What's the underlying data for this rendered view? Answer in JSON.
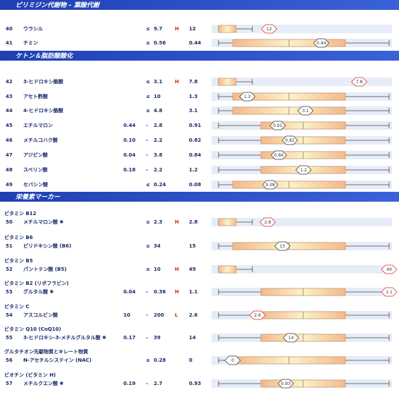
{
  "sections": [
    {
      "title": "ピリミジン代謝物 – 葉酸代謝",
      "rows": [
        {
          "no": "40",
          "name": "ウラシル",
          "op": "≤",
          "high": "9.7",
          "flag": "H",
          "value": "12"
        },
        {
          "no": "41",
          "name": "チミン",
          "op": "≤",
          "high": "0.56",
          "value": "0.44"
        }
      ]
    },
    {
      "title": "ケトン＆脂肪酸酸化",
      "rows": [
        {
          "no": "42",
          "name": "3-ヒドロキシ酪酸",
          "op": "≤",
          "high": "3.1",
          "flag": "H",
          "value": "7.8"
        },
        {
          "no": "43",
          "name": "アセト酢酸",
          "op": "≤",
          "high": "10",
          "value": "1.3"
        },
        {
          "no": "44",
          "name": "4-ヒドロキシ酪酸",
          "op": "≤",
          "high": "4.8",
          "value": "3.1"
        },
        {
          "no": "45",
          "name": "エチルマロン",
          "low": "0.44",
          "op": "-",
          "high": "2.8",
          "value": "0.91"
        },
        {
          "no": "46",
          "name": "メチルコハク酸",
          "low": "0.10",
          "op": "-",
          "high": "2.2",
          "value": "0.82"
        },
        {
          "no": "47",
          "name": "アジピン酸",
          "low": "0.04",
          "op": "-",
          "high": "3.8",
          "value": "0.84"
        },
        {
          "no": "48",
          "name": "スベリン酸",
          "low": "0.18",
          "op": "-",
          "high": "2.2",
          "value": "1.2"
        },
        {
          "no": "49",
          "name": "セバシン酸",
          "op": "≤",
          "high": "0.24",
          "value": "0.08"
        }
      ]
    },
    {
      "title": "栄養素マーカー",
      "rows": [
        {
          "group": "ビタミン B12",
          "no": "50",
          "name": "メチルマロン酸 ✱",
          "op": "≤",
          "high": "2.3",
          "flag": "H",
          "value": "2.8"
        },
        {
          "group": "ビタミン B6",
          "no": "51",
          "name": "ピリドキシン酸 (B6)",
          "op": "≤",
          "high": "34",
          "value": "15"
        },
        {
          "group": "ビタミン B5",
          "no": "52",
          "name": "パントテン酸 (B5)",
          "op": "≤",
          "high": "10",
          "flag": "H",
          "value": "49"
        },
        {
          "group": "ビタミン B2 (リボフラビン)",
          "no": "53",
          "name": "グルタル酸 ✱",
          "low": "0.04",
          "op": "-",
          "high": "0.36",
          "flag": "H",
          "value": "1.1"
        },
        {
          "group": "ビタミン C",
          "no": "54",
          "name": "アスコルビン酸",
          "low": "10",
          "op": "-",
          "high": "200",
          "flag": "L",
          "value": "2.6"
        },
        {
          "group": "ビタミン Q10 (CoQ10)",
          "no": "55",
          "name": "3-ヒドロキシ-3-メチルグルタル酸 ✱",
          "low": "0.17",
          "op": "-",
          "high": "39",
          "value": "14"
        },
        {
          "group": "グルタチオン先駆物質とキレート物質",
          "no": "56",
          "name": "N-アセチルシステイン (NAC)",
          "op": "≤",
          "high": "0.28",
          "value": "0"
        },
        {
          "group": "ビオチン (ビタミン H)",
          "no": "57",
          "name": "メチルクエン酸 ✱",
          "low": "0.19",
          "op": "-",
          "high": "2.7",
          "value": "0.93"
        }
      ]
    }
  ]
}
